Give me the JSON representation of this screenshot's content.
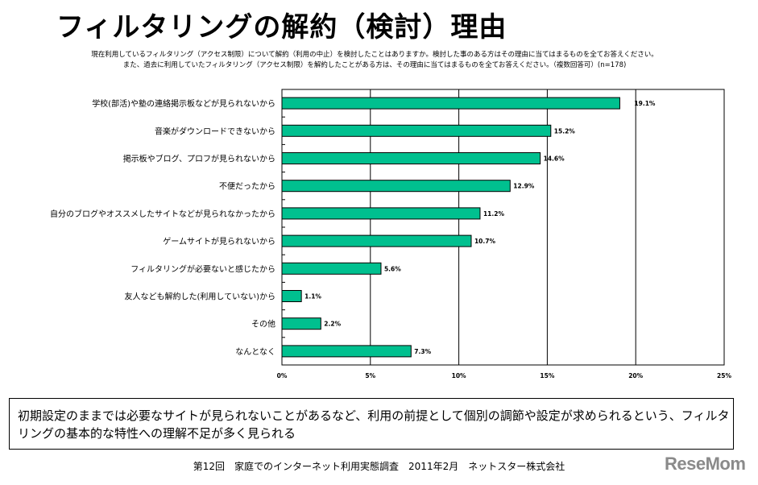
{
  "title": "フィルタリングの解約（検討）理由",
  "question": "現在利用しているフィルタリング（アクセス制限）について解約（利用の中止）を検討したことはありますか。検討した事のある方はその理由に当てはまるものを全てお答えください。また、過去に利用していたフィルタリング（アクセス制限）を解約したことがある方は、その理由に当てはまるものを全てお答えください。（複数回答可）(n=178)",
  "chart_data": {
    "type": "bar",
    "orientation": "horizontal",
    "categories": [
      "学校(部活)や塾の連絡掲示板などが見られないから",
      "音楽がダウンロードできないから",
      "掲示板やブログ、プロフが見られないから",
      "不便だったから",
      "自分のブログやオススメしたサイトなどが見られなかったから",
      "ゲームサイトが見られないから",
      "フィルタリングが必要ないと感じたから",
      "友人なども解約した(利用していない)から",
      "その他",
      "なんとなく"
    ],
    "values": [
      19.1,
      15.2,
      14.6,
      12.9,
      11.2,
      10.7,
      5.6,
      1.1,
      2.2,
      7.3
    ],
    "data_labels": [
      "19.1%",
      "15.2%",
      "14.6%",
      "12.9%",
      "11.2%",
      "10.7%",
      "5.6%",
      "1.1%",
      "2.2%",
      "7.3%"
    ],
    "xlim": [
      0,
      25
    ],
    "x_ticks": [
      "0%",
      "5%",
      "10%",
      "15%",
      "20%",
      "25%"
    ],
    "grid": true,
    "bar_color": "#00C08F"
  },
  "note": "初期設定のままでは必要なサイトが見られないことがあるなど、利用の前提として個別の調節や設定が求められるという、フィルタリングの基本的な特性への理解不足が多く見られる",
  "footer": "第12回　家庭でのインターネット利用実態調査　2011年2月　ネットスター株式会社",
  "logo": "ReseMom"
}
